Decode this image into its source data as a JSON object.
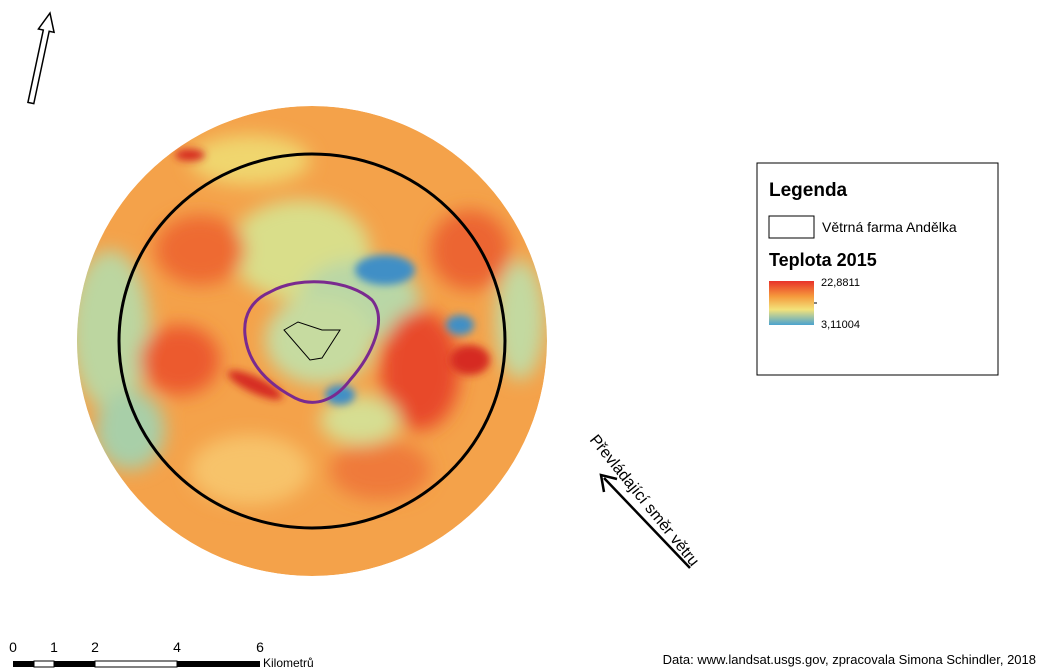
{
  "map": {
    "legend": {
      "title": "Legenda",
      "entry": "Větrná farma Andělka",
      "raster_title": "Teplota 2015",
      "max": "22,8811",
      "min": "3,11004"
    },
    "wind_label": "Převládající směr větru",
    "scale_bar": {
      "ticks": [
        "0",
        "1",
        "2",
        "4",
        "6"
      ],
      "unit": "Kilometrů"
    },
    "credit": "Data: www.landsat.usgs.gov, zpracovala Simona Schindler, 2018"
  }
}
